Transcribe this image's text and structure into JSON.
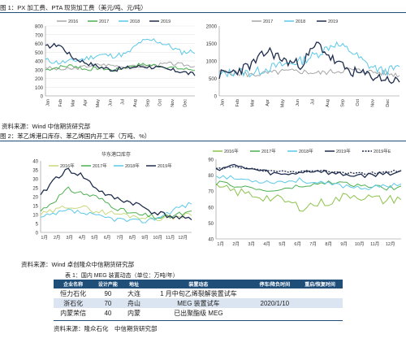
{
  "figure1": {
    "caption": "图 1：PX 加工费、PTA 现货加工费（美元/吨、元/吨）",
    "source": "资料来源：Wind 中信期货研究部",
    "left": {
      "legend": [
        "2016",
        "2017",
        "2018",
        "2019"
      ],
      "colors": [
        "#a6a6a6",
        "#4caf50",
        "#5bc8e8",
        "#1f2d4d"
      ],
      "ylim": [
        0,
        800
      ],
      "yticks": [
        "0",
        "100",
        "200",
        "300",
        "400",
        "500",
        "600",
        "700",
        "800"
      ],
      "xticks": [
        "Jan",
        "Feb",
        "Mar",
        "Apr",
        "May",
        "Jun",
        "Jul",
        "Aug",
        "Sep",
        "Oct",
        "Nov",
        "Dec"
      ]
    },
    "right": {
      "legend": [
        "2017",
        "2018",
        "2019"
      ],
      "colors": [
        "#a6a6a6",
        "#5bc8e8",
        "#1f2d4d"
      ],
      "ylim": [
        0,
        2000
      ],
      "yticks": [
        "0",
        "500",
        "1000",
        "1500",
        "2000"
      ],
      "xticks": [
        "Jan",
        "Feb",
        "Mar",
        "Apr",
        "May",
        "Jun",
        "Jul",
        "Aug",
        "Sep",
        "Oct",
        "Nov",
        "Dec"
      ]
    }
  },
  "figure2": {
    "caption": "图 2：苯乙烯港口库存、苯乙烯国内开工率（万吨、%）",
    "source": "资料来源：Wind 卓创隆众中信期货研究部",
    "left": {
      "title": "华东港口库存",
      "legend": [
        "2016年",
        "2017年",
        "2018年",
        "2019年"
      ],
      "colors": [
        "#c8d97a",
        "#4caf50",
        "#5bc8e8",
        "#1f2d4d"
      ],
      "ylim": [
        0,
        40
      ],
      "yticks": [
        "0",
        "5",
        "10",
        "15",
        "20",
        "25",
        "30",
        "35",
        "40"
      ],
      "xticks": [
        "1月",
        "2月",
        "3月",
        "4月",
        "5月",
        "6月",
        "7月",
        "8月",
        "9月",
        "10月",
        "11月",
        "12月"
      ]
    },
    "right": {
      "legend": [
        "2016年",
        "2017年",
        "2018年",
        "2019年",
        "2019年E"
      ],
      "colors": [
        "#8bc34a",
        "#4caf50",
        "#5bc8e8",
        "#1f2d4d",
        "#1f2d4d"
      ],
      "ylim": [
        40,
        90
      ],
      "yticks": [
        "40",
        "50",
        "60",
        "70",
        "80",
        "90"
      ],
      "xticks": [
        "1月",
        "2月",
        "3月",
        "4月",
        "5月",
        "6月",
        "7月",
        "8月",
        "9月",
        "10月",
        "11月",
        "12月"
      ]
    }
  },
  "table1": {
    "caption": "表 1：国内 MEG 装置动态（单位：万吨/年）",
    "headers": [
      "企业名称",
      "设计产能",
      "地址",
      "装置动态",
      "停车/降负时间",
      "重启/恢复时间"
    ],
    "rows": [
      [
        "恒力石化",
        "90",
        "大连",
        "1 月中旬乙烯裂解装置试车",
        "",
        ""
      ],
      [
        "浙石化",
        "70",
        "舟山",
        "MEG 装置试车",
        "2020/1/10",
        ""
      ],
      [
        "内蒙荣信",
        "40",
        "内蒙",
        "已出聚酯级 MEG",
        "",
        ""
      ]
    ],
    "source": "资料来源：隆众石化　中信期货研究部"
  }
}
